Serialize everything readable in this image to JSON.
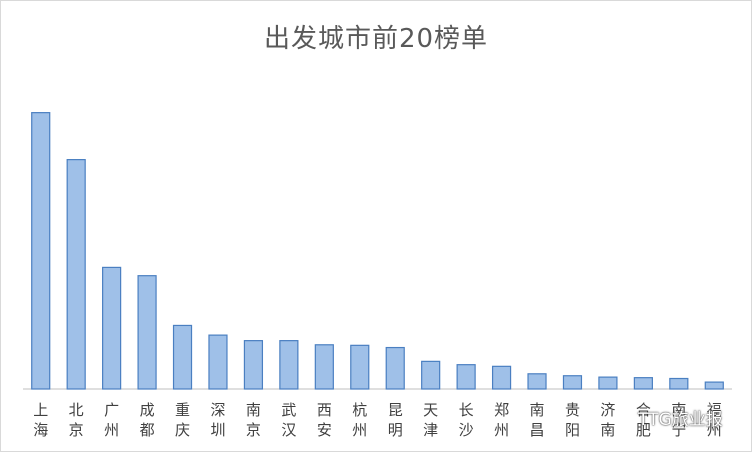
{
  "chart_data": {
    "type": "bar",
    "title": "出发城市前20榜单",
    "xlabel": "",
    "ylabel": "",
    "categories": [
      "上海",
      "北京",
      "广州",
      "成都",
      "重庆",
      "深圳",
      "南京",
      "武汉",
      "西安",
      "杭州",
      "昆明",
      "天津",
      "长沙",
      "郑州",
      "南昌",
      "贵阳",
      "济南",
      "合肥",
      "南宁",
      "福州"
    ],
    "values": [
      100,
      83,
      44,
      41,
      23,
      19.5,
      17.5,
      17.5,
      16,
      15.8,
      15,
      10,
      8.8,
      8.2,
      5.5,
      4.8,
      4.3,
      4.1,
      3.8,
      2.5
    ],
    "ylim": [
      0,
      110
    ],
    "grid": false,
    "legend": "none",
    "bar_color": "#9fc0e8",
    "bar_edge_color": "#4a7fc1",
    "axis_color": "#bfbfbf",
    "label_color": "#404040"
  },
  "watermark": {
    "text": "TTG旅业报",
    "icon": "wechat-icon"
  }
}
